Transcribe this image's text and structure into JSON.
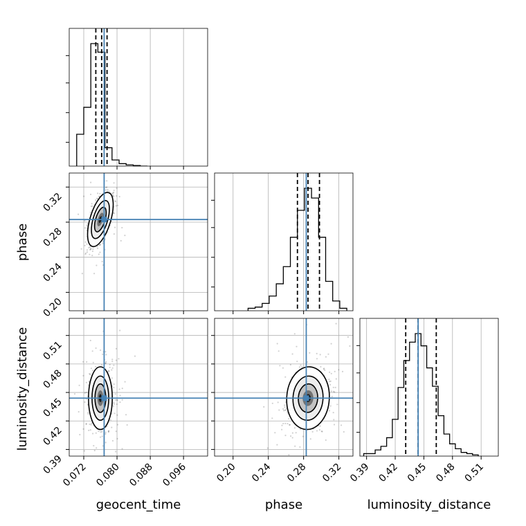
{
  "chart_data": {
    "type": "corner",
    "parameters": [
      "geocent_time",
      "phase",
      "luminosity_distance"
    ],
    "truths": {
      "geocent_time": 0.0769,
      "phase": 0.283,
      "luminosity_distance": 0.444
    },
    "truth_color": "#4682b4",
    "grid": true,
    "axes": {
      "geocent_time": {
        "range": [
          0.0685,
          0.1018
        ],
        "ticks": [
          "0.072",
          "0.080",
          "0.088",
          "0.096"
        ]
      },
      "phase": {
        "range": [
          0.179,
          0.336
        ],
        "ticks": [
          "0.20",
          "0.24",
          "0.28",
          "0.32"
        ]
      },
      "luminosity_distance": {
        "range": [
          0.383,
          0.528
        ],
        "ticks": [
          "0.39",
          "0.42",
          "0.45",
          "0.48",
          "0.51"
        ]
      }
    },
    "marginals": [
      {
        "param": "geocent_time",
        "quantiles": [
          0.0749,
          0.0763,
          0.0776
        ],
        "bin_edges": [
          0.0703,
          0.072,
          0.0737,
          0.0754,
          0.0771,
          0.0788,
          0.0805,
          0.0822,
          0.0839,
          0.0856,
          0.0873
        ],
        "counts": [
          0.26,
          0.48,
          1.0,
          0.93,
          0.15,
          0.05,
          0.02,
          0.01,
          0.005,
          0.0
        ]
      },
      {
        "param": "phase",
        "quantiles": [
          0.273,
          0.285,
          0.298
        ],
        "bin_edges": [
          0.217,
          0.225,
          0.233,
          0.241,
          0.249,
          0.257,
          0.265,
          0.273,
          0.281,
          0.289,
          0.297,
          0.305,
          0.313,
          0.321,
          0.329
        ],
        "counts": [
          0.02,
          0.03,
          0.06,
          0.12,
          0.22,
          0.36,
          0.6,
          0.82,
          1.0,
          0.92,
          0.6,
          0.24,
          0.08,
          0.02
        ]
      },
      {
        "param": "luminosity_distance",
        "quantiles": [
          0.431,
          0.444,
          0.463
        ],
        "bin_edges": [
          0.387,
          0.393,
          0.399,
          0.405,
          0.411,
          0.417,
          0.423,
          0.429,
          0.435,
          0.441,
          0.447,
          0.453,
          0.459,
          0.465,
          0.471,
          0.477,
          0.483,
          0.489,
          0.495,
          0.501,
          0.507
        ],
        "counts": [
          0.02,
          0.02,
          0.05,
          0.08,
          0.15,
          0.3,
          0.56,
          0.78,
          0.93,
          1.0,
          0.9,
          0.72,
          0.57,
          0.33,
          0.18,
          0.1,
          0.06,
          0.03,
          0.02,
          0.01
        ]
      }
    ],
    "joint": [
      {
        "x": "geocent_time",
        "y": "phase",
        "mean": [
          0.076,
          0.283
        ],
        "sd": [
          0.0014,
          0.014
        ],
        "rho": 0.55
      },
      {
        "x": "geocent_time",
        "y": "luminosity_distance",
        "mean": [
          0.076,
          0.444
        ],
        "sd": [
          0.0013,
          0.015
        ],
        "rho": 0.0
      },
      {
        "x": "phase",
        "y": "luminosity_distance",
        "mean": [
          0.285,
          0.444
        ],
        "sd": [
          0.011,
          0.015
        ],
        "rho": 0.05
      }
    ]
  }
}
